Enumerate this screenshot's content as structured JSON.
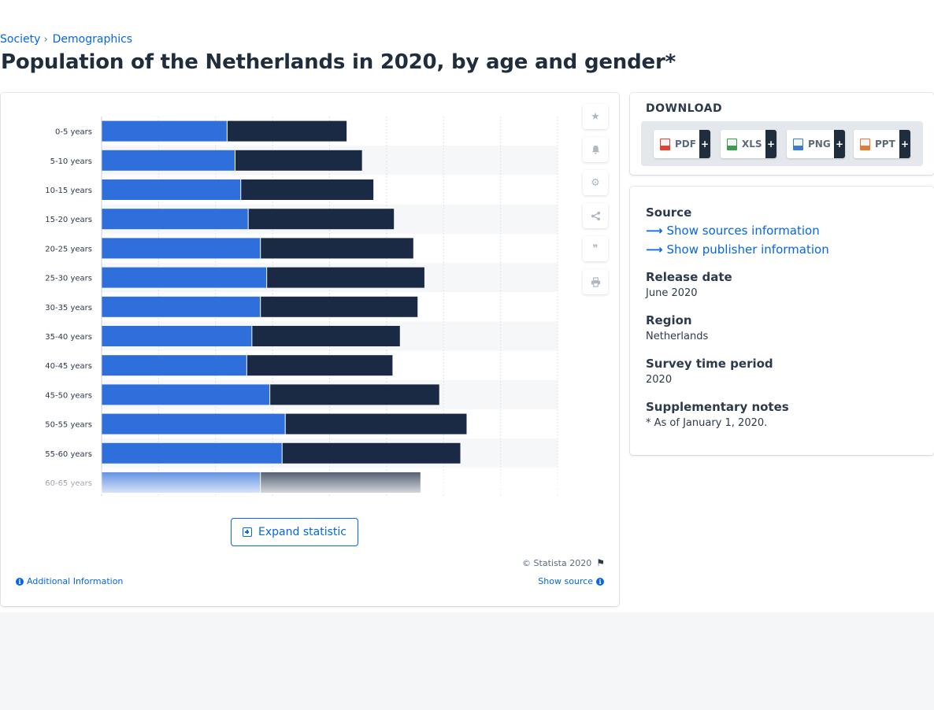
{
  "breadcrumb": {
    "items": [
      "Society",
      "Demographics"
    ],
    "separator": "›"
  },
  "page_title": "Population of the Netherlands in 2020, by age and gender*",
  "colors": {
    "male": "#2f6fdb",
    "female": "#1a2a44",
    "accent": "#0666e5",
    "band": "#f6f7f9",
    "grid": "#dfe3e8"
  },
  "chart_data": {
    "type": "bar",
    "orientation": "horizontal",
    "stacked": true,
    "categories": [
      "0-5 years",
      "5-10 years",
      "10-15 years",
      "15-20 years",
      "20-25 years",
      "25-30 years",
      "30-35 years",
      "35-40 years",
      "40-45 years",
      "45-50 years",
      "50-55 years",
      "55-60 years",
      "60-65 years"
    ],
    "series": [
      {
        "values": [
          439,
          467,
          487,
          513,
          556,
          578,
          556,
          526,
          508,
          589,
          643,
          632,
          556
        ]
      },
      {
        "values": [
          418,
          444,
          464,
          510,
          535,
          552,
          550,
          518,
          510,
          593,
          635,
          624,
          560
        ]
      }
    ],
    "xlim": [
      0,
      1600
    ],
    "grid": true,
    "legend": "none",
    "truncated_after_index": 12
  },
  "toolbar": {
    "icons": [
      "star-icon",
      "bell-icon",
      "gear-icon",
      "share-icon",
      "quote-icon",
      "print-icon"
    ]
  },
  "expand_label": "Expand statistic",
  "copyright": "© Statista 2020",
  "additional_info": "Additional Information",
  "show_source": "Show source",
  "download": {
    "title": "DOWNLOAD",
    "buttons": [
      {
        "label": "PDF",
        "color": "#e2412f"
      },
      {
        "label": "XLS",
        "color": "#3a9d4d"
      },
      {
        "label": "PNG",
        "color": "#3a7bd5"
      },
      {
        "label": "PPT",
        "color": "#e27a2f"
      }
    ],
    "plus": "+"
  },
  "info": {
    "source_heading": "Source",
    "show_sources": "Show sources information",
    "show_publisher": "Show publisher information",
    "release_heading": "Release date",
    "release_value": "June 2020",
    "region_heading": "Region",
    "region_value": "Netherlands",
    "period_heading": "Survey time period",
    "period_value": "2020",
    "notes_heading": "Supplementary notes",
    "notes_value": "* As of January 1, 2020."
  }
}
